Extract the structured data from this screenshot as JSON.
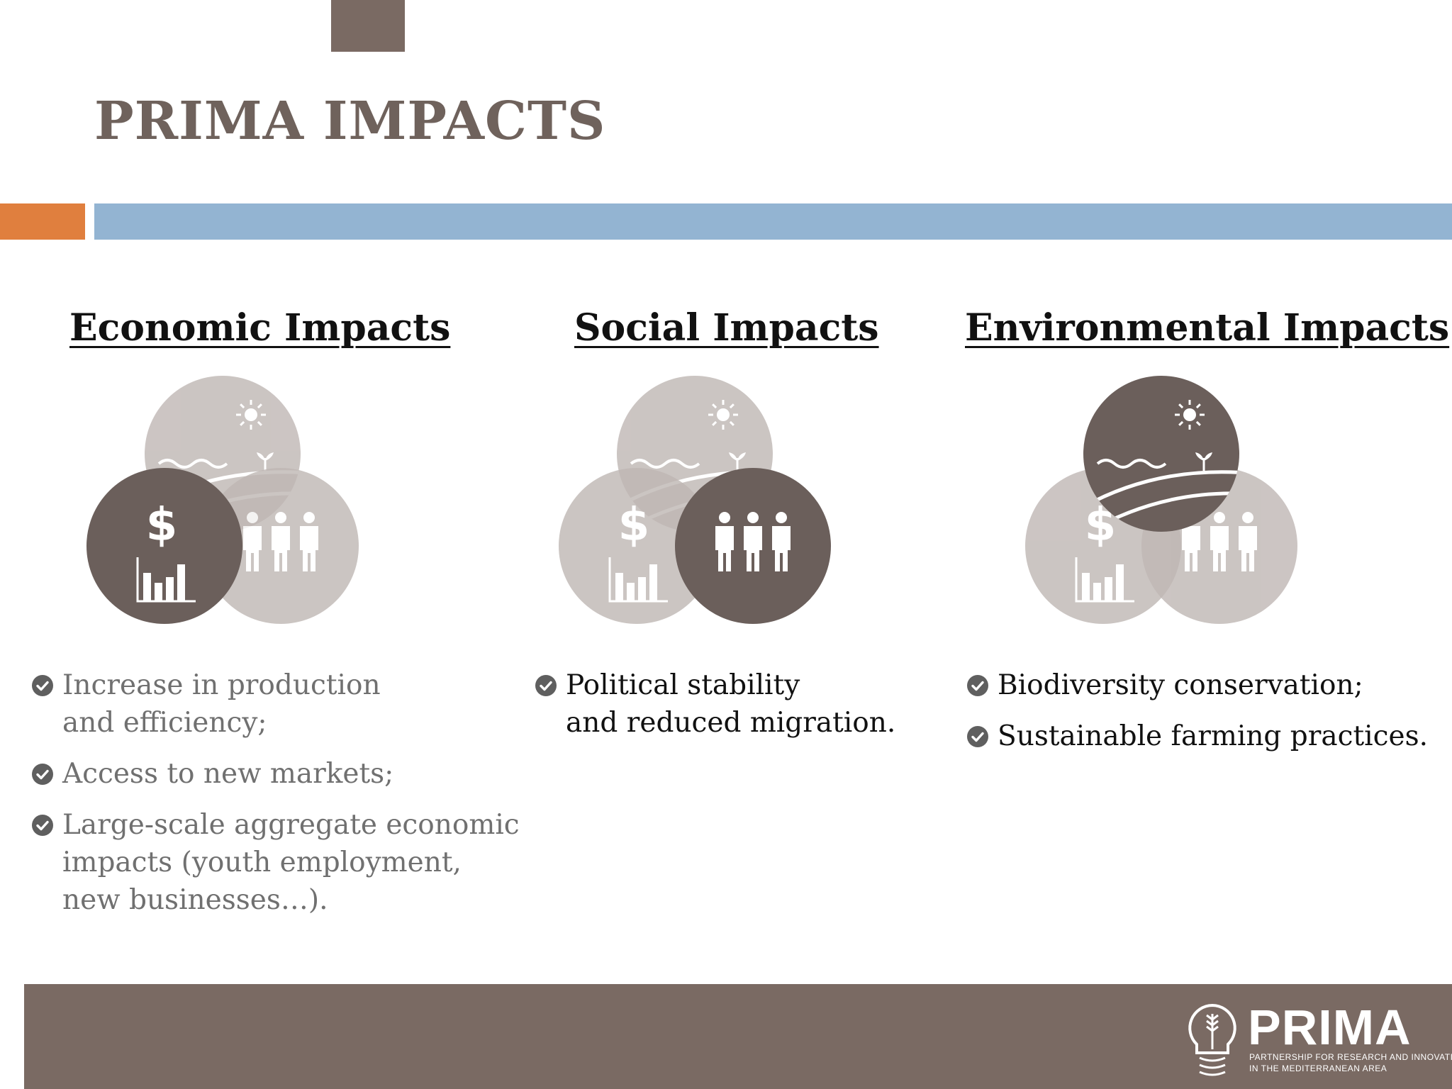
{
  "slide": {
    "title": "PRIMA IMPACTS"
  },
  "columns": [
    {
      "heading": "Economic Impacts",
      "highlight": "economic",
      "items": [
        {
          "lines": [
            "Increase in production",
            "and efficiency;"
          ]
        },
        {
          "lines": [
            "Access to new markets;"
          ]
        },
        {
          "lines": [
            "Large-scale aggregate economic",
            "impacts (youth employment,",
            "new businesses…)."
          ]
        }
      ]
    },
    {
      "heading": "Social Impacts",
      "highlight": "social",
      "items": [
        {
          "lines": [
            "Political stability",
            "and reduced migration."
          ]
        }
      ]
    },
    {
      "heading": "Environmental Impacts",
      "highlight": "environmental",
      "items": [
        {
          "lines": [
            "Biodiversity conservation;"
          ]
        },
        {
          "lines": [
            "Sustainable farming practices."
          ]
        }
      ]
    }
  ],
  "footer": {
    "logo_name": "PRIMA",
    "logo_tagline": [
      "PARTNERSHIP FOR RESEARCH AND INNOVATION",
      "IN THE MEDITERRANEAN AREA"
    ]
  },
  "colors": {
    "accent_brown": "#7a6a63",
    "accent_orange": "#e07f3e",
    "accent_blue": "#93b4d2",
    "circle_light": "#bfb7b4",
    "circle_dark": "#6b5f5b"
  },
  "icons": [
    "check-circle-icon",
    "sun-icon",
    "dollar-icon",
    "bar-chart-icon",
    "people-icon",
    "plant-icon",
    "wave-icon"
  ]
}
